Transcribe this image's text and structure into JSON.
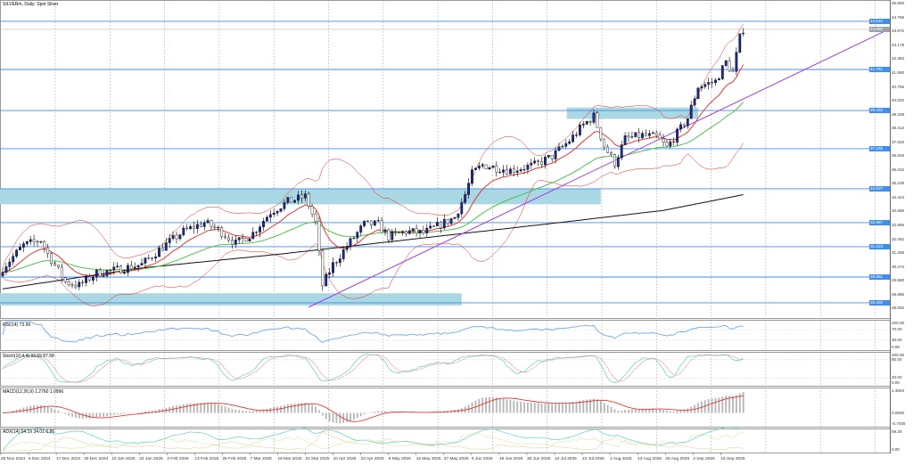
{
  "window": {
    "title": "SILVERm, Daily:  Spot Silver"
  },
  "price_axis": {
    "ticks": [
      "45.560",
      "44.766",
      "43.972",
      "43.178",
      "42.384",
      "41.590",
      "40.796",
      "40.002",
      "39.208",
      "38.414",
      "37.620",
      "36.826",
      "36.032",
      "35.238",
      "34.444",
      "33.650",
      "32.856",
      "32.062",
      "31.268",
      "30.474",
      "29.680",
      "28.886",
      "28.092"
    ],
    "range": [
      28.092,
      45.56
    ],
    "current_price": {
      "value": 44.08,
      "label": "44.080"
    },
    "levels": [
      {
        "value": 44.54,
        "label": "44.540"
      },
      {
        "value": 41.78,
        "label": "41.781"
      },
      {
        "value": 39.43,
        "label": "39.432"
      },
      {
        "value": 37.24,
        "label": "37.236"
      },
      {
        "value": 34.94,
        "label": "34.937"
      },
      {
        "value": 33.0,
        "label": "32.997"
      },
      {
        "value": 31.62,
        "label": "31.618"
      },
      {
        "value": 29.88,
        "label": "29.881"
      },
      {
        "value": 28.4,
        "label": "28.400"
      }
    ]
  },
  "zones": [
    {
      "from_bar": 0,
      "to_bar": 172,
      "low": 34.05,
      "high": 34.95
    },
    {
      "from_bar": 0,
      "to_bar": 132,
      "low": 28.25,
      "high": 28.95
    },
    {
      "from_bar": 163,
      "to_bar": 200,
      "low": 38.95,
      "high": 39.6
    }
  ],
  "trendline": {
    "from": [
      88,
      28.15
    ],
    "to": [
      233,
      42.0
    ]
  },
  "price_path": [
    [
      0,
      30.4
    ],
    [
      6,
      31.7
    ],
    [
      11,
      32.0
    ],
    [
      13,
      31.2
    ],
    [
      18,
      29.6
    ],
    [
      22,
      29.4
    ],
    [
      27,
      30.1
    ],
    [
      33,
      30.3
    ],
    [
      40,
      30.6
    ],
    [
      46,
      31.6
    ],
    [
      52,
      32.5
    ],
    [
      58,
      33.0
    ],
    [
      62,
      32.6
    ],
    [
      67,
      31.8
    ],
    [
      72,
      32.4
    ],
    [
      77,
      33.6
    ],
    [
      82,
      34.2
    ],
    [
      87,
      34.5
    ],
    [
      90,
      33.0
    ],
    [
      92,
      29.4
    ],
    [
      95,
      30.6
    ],
    [
      100,
      31.9
    ],
    [
      104,
      32.9
    ],
    [
      108,
      32.9
    ],
    [
      111,
      32.2
    ],
    [
      116,
      32.5
    ],
    [
      121,
      32.4
    ],
    [
      125,
      32.8
    ],
    [
      130,
      33.3
    ],
    [
      133,
      34.6
    ],
    [
      135,
      35.8
    ],
    [
      138,
      36.3
    ],
    [
      146,
      36.0
    ],
    [
      153,
      36.3
    ],
    [
      158,
      36.8
    ],
    [
      163,
      37.7
    ],
    [
      167,
      38.6
    ],
    [
      170,
      39.1
    ],
    [
      173,
      37.4
    ],
    [
      176,
      36.4
    ],
    [
      179,
      37.8
    ],
    [
      184,
      38.0
    ],
    [
      188,
      37.9
    ],
    [
      191,
      37.3
    ],
    [
      195,
      38.4
    ],
    [
      197,
      39.0
    ],
    [
      200,
      40.8
    ],
    [
      205,
      41.1
    ],
    [
      208,
      42.2
    ],
    [
      210,
      41.6
    ],
    [
      212,
      43.6
    ],
    [
      213,
      44.1
    ]
  ],
  "long_ma": [
    [
      0,
      29.2
    ],
    [
      40,
      30.4
    ],
    [
      80,
      31.2
    ],
    [
      120,
      32.1
    ],
    [
      160,
      33.0
    ],
    [
      190,
      33.7
    ],
    [
      213,
      34.6
    ]
  ],
  "indicators": {
    "rsi": {
      "label": "RSI(14) 73.99",
      "levels": [
        "100.00",
        "70.00",
        "30.00",
        "0.00"
      ]
    },
    "stoch": {
      "label": "Stoch(10,4,4) 93.69 87.58",
      "levels": [
        "100.00",
        "80.00",
        "20.00",
        "0.00"
      ]
    },
    "macd": {
      "label": "MACD(12,26,9) 1.2760 1.0996",
      "levels": [
        "1.4604",
        "0.0000",
        "-0.7405"
      ]
    },
    "adx": {
      "label": "ADX(14) 54.19 34.01 6.86",
      "levels": [
        "59.30",
        "0.00"
      ]
    }
  },
  "dates": [
    "25 Nov 2024",
    "5 Dec 2024",
    "17 Dec 2024",
    "30 Dec 2024",
    "10 Jan 2025",
    "22 Jan 2025",
    "3 Feb 2025",
    "13 Feb 2025",
    "25 Feb 2025",
    "7 Mar 2025",
    "19 Mar 2025",
    "31 Mar 2025",
    "10 Apr 2025",
    "23 Apr 2025",
    "5 May 2025",
    "15 May 2025",
    "27 May 2025",
    "6 Jun 2025",
    "18 Jun 2025",
    "30 Jun 2025",
    "10 Jul 2025",
    "22 Jul 2025",
    "1 Aug 2025",
    "13 Aug 2025",
    "25 Aug 2025",
    "4 Sep 2025",
    "16 Sep 2025"
  ],
  "colors": {
    "level": "#3d8ff0",
    "zone": "#a9d8e4",
    "bull": "#1c2a8a",
    "bear": "#ffffff",
    "fast_ma": "#e8251b",
    "mid_ma": "#3cbf3c",
    "long_ma": "#111111",
    "bands": "#e8251b",
    "trend": "#a23bd8",
    "rsi": "#5aa0ee",
    "stoch_main": "#5fd0c8",
    "stoch_signal": "#f06a6a"
  }
}
